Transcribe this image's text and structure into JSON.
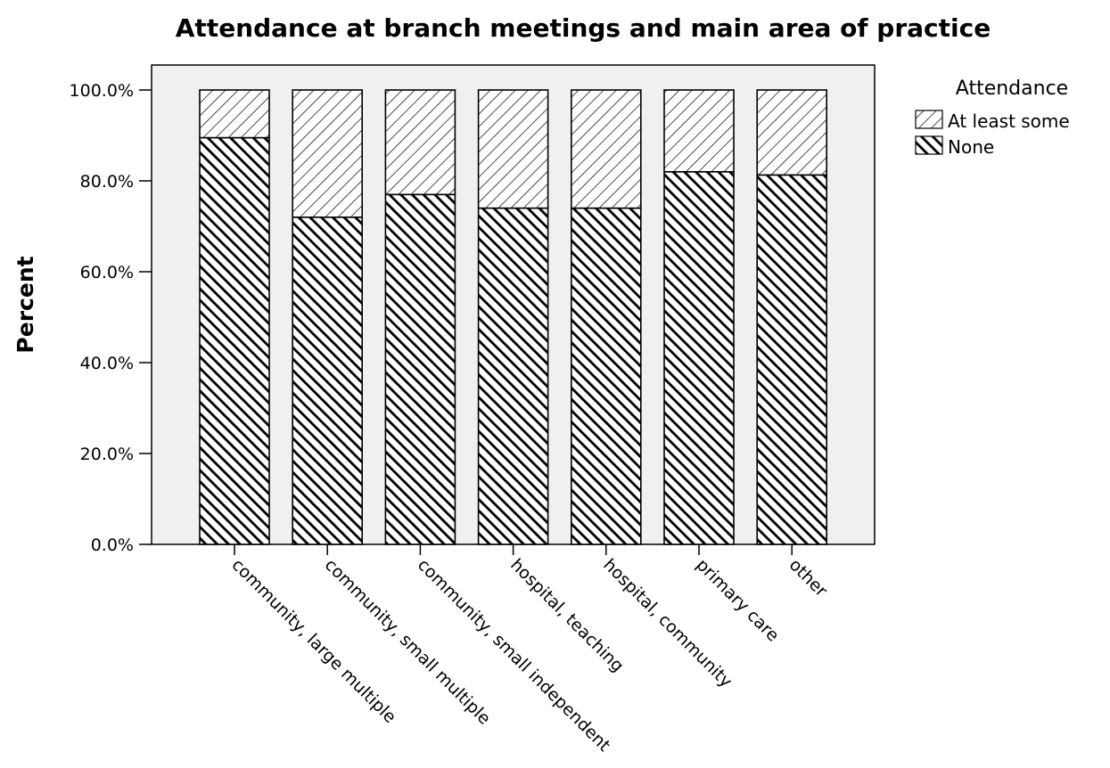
{
  "chart_data": {
    "type": "bar",
    "stacked": true,
    "title": "Attendance at branch meetings and main area of practice",
    "xlabel": "",
    "ylabel": "Percent",
    "ylim": [
      0,
      100
    ],
    "y_ticks": [
      "0.0%",
      "20.0%",
      "40.0%",
      "60.0%",
      "80.0%",
      "100.0%"
    ],
    "grid": false,
    "categories": [
      "community, large multiple",
      "community, small multiple",
      "community, small independent",
      "hospital, teaching",
      "hospital, community",
      "primary care",
      "other"
    ],
    "legend": {
      "title": "Attendance",
      "placement": "top-right"
    },
    "series": [
      {
        "name": "None",
        "pattern": "dense-dark-diagonal",
        "values": [
          89.5,
          72.0,
          77.0,
          74.0,
          74.0,
          82.0,
          81.3
        ]
      },
      {
        "name": "At least some",
        "pattern": "light-diagonal",
        "values": [
          10.5,
          28.0,
          23.0,
          26.0,
          26.0,
          18.0,
          18.7
        ]
      }
    ],
    "colors": {
      "plot_background": "#f0f0f0",
      "bar_stroke": "#000000"
    }
  }
}
